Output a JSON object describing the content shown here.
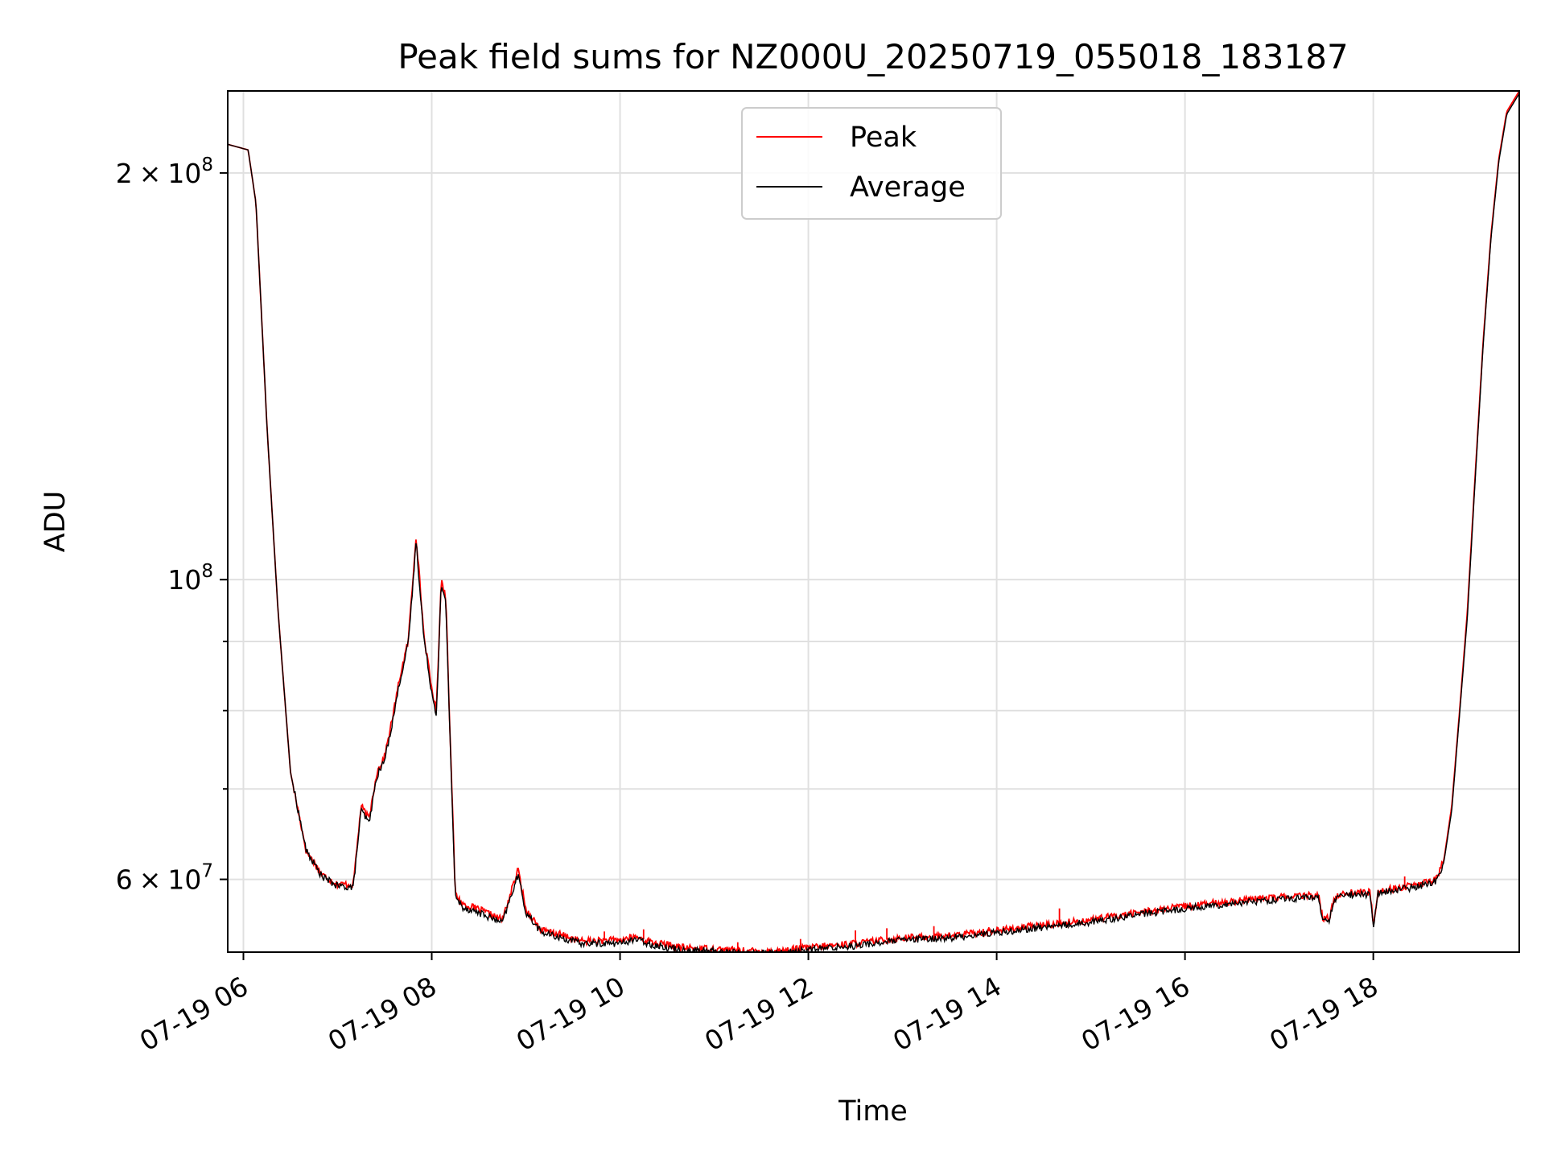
{
  "chart_data": {
    "type": "line",
    "title": "Peak field sums for NZ000U_20250719_055018_183187",
    "xlabel": "Time",
    "ylabel": "ADU",
    "yscale": "log",
    "ylim": [
      53000000,
      230000000
    ],
    "xlim": [
      "2025-07-19T05:50",
      "2025-07-19T19:33"
    ],
    "x_ticks": [
      {
        "label": "07-19 06",
        "value": "2025-07-19T06:00"
      },
      {
        "label": "07-19 08",
        "value": "2025-07-19T08:00"
      },
      {
        "label": "07-19 10",
        "value": "2025-07-19T10:00"
      },
      {
        "label": "07-19 12",
        "value": "2025-07-19T12:00"
      },
      {
        "label": "07-19 14",
        "value": "2025-07-19T14:00"
      },
      {
        "label": "07-19 16",
        "value": "2025-07-19T16:00"
      },
      {
        "label": "07-19 18",
        "value": "2025-07-19T18:00"
      }
    ],
    "y_major_ticks": [
      {
        "label": "2 × 10^8",
        "base": "2",
        "mult": "×",
        "pow": "10",
        "exp": "8",
        "value": 200000000
      },
      {
        "label": "10^8",
        "base": "",
        "mult": "",
        "pow": "10",
        "exp": "8",
        "value": 100000000
      },
      {
        "label": "6 × 10^7",
        "base": "6",
        "mult": "×",
        "pow": "10",
        "exp": "7",
        "value": 60000000
      }
    ],
    "y_minor_ticks": [
      70000000,
      80000000,
      90000000
    ],
    "grid": true,
    "legend": {
      "placement": "upper center"
    },
    "series": [
      {
        "name": "Peak",
        "color": "#ff0000",
        "x": [
          "2025-07-19T05:50",
          "2025-07-19T06:03",
          "2025-07-19T06:08",
          "2025-07-19T06:15",
          "2025-07-19T06:22",
          "2025-07-19T06:30",
          "2025-07-19T06:40",
          "2025-07-19T06:50",
          "2025-07-19T07:00",
          "2025-07-19T07:10",
          "2025-07-19T07:15",
          "2025-07-19T07:20",
          "2025-07-19T07:25",
          "2025-07-19T07:30",
          "2025-07-19T07:35",
          "2025-07-19T07:40",
          "2025-07-19T07:45",
          "2025-07-19T07:48",
          "2025-07-19T07:50",
          "2025-07-19T07:52",
          "2025-07-19T07:55",
          "2025-07-19T08:00",
          "2025-07-19T08:03",
          "2025-07-19T08:06",
          "2025-07-19T08:09",
          "2025-07-19T08:12",
          "2025-07-19T08:15",
          "2025-07-19T08:20",
          "2025-07-19T08:30",
          "2025-07-19T08:45",
          "2025-07-19T08:55",
          "2025-07-19T09:00",
          "2025-07-19T09:10",
          "2025-07-19T09:20",
          "2025-07-19T09:35",
          "2025-07-19T10:00",
          "2025-07-19T10:10",
          "2025-07-19T10:20",
          "2025-07-19T10:40",
          "2025-07-19T11:00",
          "2025-07-19T11:20",
          "2025-07-19T11:40",
          "2025-07-19T12:00",
          "2025-07-19T12:30",
          "2025-07-19T13:00",
          "2025-07-19T13:30",
          "2025-07-19T14:00",
          "2025-07-19T14:30",
          "2025-07-19T15:00",
          "2025-07-19T15:30",
          "2025-07-19T16:00",
          "2025-07-19T16:30",
          "2025-07-19T17:00",
          "2025-07-19T17:25",
          "2025-07-19T17:28",
          "2025-07-19T17:32",
          "2025-07-19T17:35",
          "2025-07-19T17:40",
          "2025-07-19T17:50",
          "2025-07-19T17:58",
          "2025-07-19T18:00",
          "2025-07-19T18:03",
          "2025-07-19T18:30",
          "2025-07-19T18:40",
          "2025-07-19T18:45",
          "2025-07-19T18:50",
          "2025-07-19T18:55",
          "2025-07-19T19:00",
          "2025-07-19T19:05",
          "2025-07-19T19:10",
          "2025-07-19T19:15",
          "2025-07-19T19:20",
          "2025-07-19T19:25",
          "2025-07-19T19:33"
        ],
        "values": [
          210000000,
          208000000,
          190000000,
          130000000,
          95000000,
          72000000,
          63000000,
          60500000,
          59500000,
          59500000,
          68000000,
          66500000,
          72000000,
          74000000,
          79000000,
          85000000,
          90000000,
          100000000,
          108000000,
          101000000,
          91000000,
          83000000,
          80000000,
          100000000,
          97000000,
          75000000,
          58500000,
          57500000,
          57000000,
          56000000,
          61000000,
          57000000,
          55000000,
          54700000,
          54000000,
          54100000,
          54400000,
          53900000,
          53400000,
          53300000,
          53100000,
          53100000,
          53400000,
          53800000,
          54300000,
          54500000,
          55000000,
          55500000,
          56000000,
          56700000,
          57300000,
          57800000,
          58200000,
          58400000,
          56000000,
          56200000,
          58100000,
          58600000,
          58700000,
          58700000,
          55500000,
          58800000,
          59500000,
          60000000,
          62000000,
          68000000,
          80000000,
          95000000,
          120000000,
          150000000,
          180000000,
          205000000,
          222000000,
          230000000
        ],
        "spikes": [
          {
            "x": "2025-07-19T09:50",
            "value": 54900000
          },
          {
            "x": "2025-07-19T10:15",
            "value": 55100000
          },
          {
            "x": "2025-07-19T11:15",
            "value": 53900000
          },
          {
            "x": "2025-07-19T11:55",
            "value": 54200000
          },
          {
            "x": "2025-07-19T12:30",
            "value": 55000000
          },
          {
            "x": "2025-07-19T12:50",
            "value": 55200000
          },
          {
            "x": "2025-07-19T13:20",
            "value": 55400000
          },
          {
            "x": "2025-07-19T13:55",
            "value": 55300000
          },
          {
            "x": "2025-07-19T14:40",
            "value": 57100000
          },
          {
            "x": "2025-07-19T15:10",
            "value": 56500000
          },
          {
            "x": "2025-07-19T15:45",
            "value": 57200000
          },
          {
            "x": "2025-07-19T16:20",
            "value": 57500000
          },
          {
            "x": "2025-07-19T16:35",
            "value": 58200000
          },
          {
            "x": "2025-07-19T17:10",
            "value": 58600000
          },
          {
            "x": "2025-07-19T18:20",
            "value": 60300000
          }
        ]
      },
      {
        "name": "Average",
        "color": "#000000",
        "x": [
          "2025-07-19T05:50",
          "2025-07-19T06:03",
          "2025-07-19T06:08",
          "2025-07-19T06:15",
          "2025-07-19T06:22",
          "2025-07-19T06:30",
          "2025-07-19T06:40",
          "2025-07-19T06:50",
          "2025-07-19T07:00",
          "2025-07-19T07:10",
          "2025-07-19T07:15",
          "2025-07-19T07:20",
          "2025-07-19T07:25",
          "2025-07-19T07:30",
          "2025-07-19T07:35",
          "2025-07-19T07:40",
          "2025-07-19T07:45",
          "2025-07-19T07:48",
          "2025-07-19T07:50",
          "2025-07-19T07:52",
          "2025-07-19T07:55",
          "2025-07-19T08:00",
          "2025-07-19T08:03",
          "2025-07-19T08:06",
          "2025-07-19T08:09",
          "2025-07-19T08:12",
          "2025-07-19T08:15",
          "2025-07-19T08:20",
          "2025-07-19T08:30",
          "2025-07-19T08:45",
          "2025-07-19T08:55",
          "2025-07-19T09:00",
          "2025-07-19T09:10",
          "2025-07-19T09:20",
          "2025-07-19T09:35",
          "2025-07-19T10:00",
          "2025-07-19T10:10",
          "2025-07-19T10:20",
          "2025-07-19T10:40",
          "2025-07-19T11:00",
          "2025-07-19T11:20",
          "2025-07-19T11:40",
          "2025-07-19T12:00",
          "2025-07-19T12:30",
          "2025-07-19T13:00",
          "2025-07-19T13:30",
          "2025-07-19T14:00",
          "2025-07-19T14:30",
          "2025-07-19T15:00",
          "2025-07-19T15:30",
          "2025-07-19T16:00",
          "2025-07-19T16:30",
          "2025-07-19T17:00",
          "2025-07-19T17:25",
          "2025-07-19T17:28",
          "2025-07-19T17:32",
          "2025-07-19T17:35",
          "2025-07-19T17:40",
          "2025-07-19T17:50",
          "2025-07-19T17:58",
          "2025-07-19T18:00",
          "2025-07-19T18:03",
          "2025-07-19T18:30",
          "2025-07-19T18:40",
          "2025-07-19T18:45",
          "2025-07-19T18:50",
          "2025-07-19T18:55",
          "2025-07-19T19:00",
          "2025-07-19T19:05",
          "2025-07-19T19:10",
          "2025-07-19T19:15",
          "2025-07-19T19:20",
          "2025-07-19T19:25",
          "2025-07-19T19:33"
        ],
        "values": [
          210000000,
          208000000,
          190000000,
          130000000,
          95000000,
          72000000,
          63000000,
          60300000,
          59300000,
          59200000,
          67500000,
          66000000,
          71500000,
          73500000,
          78500000,
          84500000,
          89500000,
          99000000,
          107000000,
          100000000,
          90500000,
          82500000,
          79500000,
          99000000,
          96000000,
          74500000,
          58200000,
          57200000,
          56700000,
          55700000,
          60500000,
          56700000,
          54800000,
          54400000,
          53800000,
          53800000,
          54200000,
          53700000,
          53200000,
          53100000,
          52900000,
          52900000,
          53200000,
          53600000,
          54100000,
          54300000,
          54800000,
          55300000,
          55800000,
          56500000,
          57100000,
          57600000,
          58000000,
          58200000,
          55800000,
          56000000,
          57900000,
          58400000,
          58500000,
          58500000,
          55300000,
          58600000,
          59300000,
          59800000,
          61800000,
          67500000,
          79500000,
          94000000,
          119000000,
          149000000,
          179000000,
          204000000,
          221000000,
          229000000
        ]
      }
    ]
  }
}
